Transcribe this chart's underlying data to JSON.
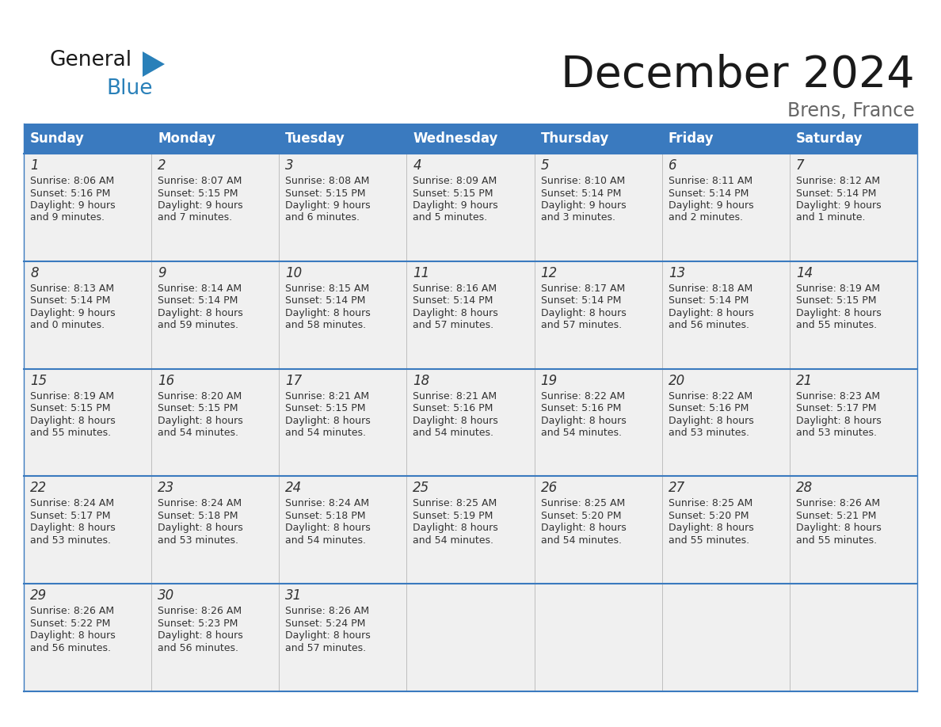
{
  "title": "December 2024",
  "subtitle": "Brens, France",
  "header_color": "#3a7abf",
  "header_text_color": "#ffffff",
  "cell_bg_color": "#f0f0f0",
  "divider_color": "#3a7abf",
  "text_color": "#333333",
  "subtitle_color": "#666666",
  "day_names": [
    "Sunday",
    "Monday",
    "Tuesday",
    "Wednesday",
    "Thursday",
    "Friday",
    "Saturday"
  ],
  "days": [
    {
      "day": 1,
      "col": 0,
      "row": 0,
      "sunrise": "8:06 AM",
      "sunset": "5:16 PM",
      "daylight_h": "9 hours",
      "daylight_m": "and 9 minutes."
    },
    {
      "day": 2,
      "col": 1,
      "row": 0,
      "sunrise": "8:07 AM",
      "sunset": "5:15 PM",
      "daylight_h": "9 hours",
      "daylight_m": "and 7 minutes."
    },
    {
      "day": 3,
      "col": 2,
      "row": 0,
      "sunrise": "8:08 AM",
      "sunset": "5:15 PM",
      "daylight_h": "9 hours",
      "daylight_m": "and 6 minutes."
    },
    {
      "day": 4,
      "col": 3,
      "row": 0,
      "sunrise": "8:09 AM",
      "sunset": "5:15 PM",
      "daylight_h": "9 hours",
      "daylight_m": "and 5 minutes."
    },
    {
      "day": 5,
      "col": 4,
      "row": 0,
      "sunrise": "8:10 AM",
      "sunset": "5:14 PM",
      "daylight_h": "9 hours",
      "daylight_m": "and 3 minutes."
    },
    {
      "day": 6,
      "col": 5,
      "row": 0,
      "sunrise": "8:11 AM",
      "sunset": "5:14 PM",
      "daylight_h": "9 hours",
      "daylight_m": "and 2 minutes."
    },
    {
      "day": 7,
      "col": 6,
      "row": 0,
      "sunrise": "8:12 AM",
      "sunset": "5:14 PM",
      "daylight_h": "9 hours",
      "daylight_m": "and 1 minute."
    },
    {
      "day": 8,
      "col": 0,
      "row": 1,
      "sunrise": "8:13 AM",
      "sunset": "5:14 PM",
      "daylight_h": "9 hours",
      "daylight_m": "and 0 minutes."
    },
    {
      "day": 9,
      "col": 1,
      "row": 1,
      "sunrise": "8:14 AM",
      "sunset": "5:14 PM",
      "daylight_h": "8 hours",
      "daylight_m": "and 59 minutes."
    },
    {
      "day": 10,
      "col": 2,
      "row": 1,
      "sunrise": "8:15 AM",
      "sunset": "5:14 PM",
      "daylight_h": "8 hours",
      "daylight_m": "and 58 minutes."
    },
    {
      "day": 11,
      "col": 3,
      "row": 1,
      "sunrise": "8:16 AM",
      "sunset": "5:14 PM",
      "daylight_h": "8 hours",
      "daylight_m": "and 57 minutes."
    },
    {
      "day": 12,
      "col": 4,
      "row": 1,
      "sunrise": "8:17 AM",
      "sunset": "5:14 PM",
      "daylight_h": "8 hours",
      "daylight_m": "and 57 minutes."
    },
    {
      "day": 13,
      "col": 5,
      "row": 1,
      "sunrise": "8:18 AM",
      "sunset": "5:14 PM",
      "daylight_h": "8 hours",
      "daylight_m": "and 56 minutes."
    },
    {
      "day": 14,
      "col": 6,
      "row": 1,
      "sunrise": "8:19 AM",
      "sunset": "5:15 PM",
      "daylight_h": "8 hours",
      "daylight_m": "and 55 minutes."
    },
    {
      "day": 15,
      "col": 0,
      "row": 2,
      "sunrise": "8:19 AM",
      "sunset": "5:15 PM",
      "daylight_h": "8 hours",
      "daylight_m": "and 55 minutes."
    },
    {
      "day": 16,
      "col": 1,
      "row": 2,
      "sunrise": "8:20 AM",
      "sunset": "5:15 PM",
      "daylight_h": "8 hours",
      "daylight_m": "and 54 minutes."
    },
    {
      "day": 17,
      "col": 2,
      "row": 2,
      "sunrise": "8:21 AM",
      "sunset": "5:15 PM",
      "daylight_h": "8 hours",
      "daylight_m": "and 54 minutes."
    },
    {
      "day": 18,
      "col": 3,
      "row": 2,
      "sunrise": "8:21 AM",
      "sunset": "5:16 PM",
      "daylight_h": "8 hours",
      "daylight_m": "and 54 minutes."
    },
    {
      "day": 19,
      "col": 4,
      "row": 2,
      "sunrise": "8:22 AM",
      "sunset": "5:16 PM",
      "daylight_h": "8 hours",
      "daylight_m": "and 54 minutes."
    },
    {
      "day": 20,
      "col": 5,
      "row": 2,
      "sunrise": "8:22 AM",
      "sunset": "5:16 PM",
      "daylight_h": "8 hours",
      "daylight_m": "and 53 minutes."
    },
    {
      "day": 21,
      "col": 6,
      "row": 2,
      "sunrise": "8:23 AM",
      "sunset": "5:17 PM",
      "daylight_h": "8 hours",
      "daylight_m": "and 53 minutes."
    },
    {
      "day": 22,
      "col": 0,
      "row": 3,
      "sunrise": "8:24 AM",
      "sunset": "5:17 PM",
      "daylight_h": "8 hours",
      "daylight_m": "and 53 minutes."
    },
    {
      "day": 23,
      "col": 1,
      "row": 3,
      "sunrise": "8:24 AM",
      "sunset": "5:18 PM",
      "daylight_h": "8 hours",
      "daylight_m": "and 53 minutes."
    },
    {
      "day": 24,
      "col": 2,
      "row": 3,
      "sunrise": "8:24 AM",
      "sunset": "5:18 PM",
      "daylight_h": "8 hours",
      "daylight_m": "and 54 minutes."
    },
    {
      "day": 25,
      "col": 3,
      "row": 3,
      "sunrise": "8:25 AM",
      "sunset": "5:19 PM",
      "daylight_h": "8 hours",
      "daylight_m": "and 54 minutes."
    },
    {
      "day": 26,
      "col": 4,
      "row": 3,
      "sunrise": "8:25 AM",
      "sunset": "5:20 PM",
      "daylight_h": "8 hours",
      "daylight_m": "and 54 minutes."
    },
    {
      "day": 27,
      "col": 5,
      "row": 3,
      "sunrise": "8:25 AM",
      "sunset": "5:20 PM",
      "daylight_h": "8 hours",
      "daylight_m": "and 55 minutes."
    },
    {
      "day": 28,
      "col": 6,
      "row": 3,
      "sunrise": "8:26 AM",
      "sunset": "5:21 PM",
      "daylight_h": "8 hours",
      "daylight_m": "and 55 minutes."
    },
    {
      "day": 29,
      "col": 0,
      "row": 4,
      "sunrise": "8:26 AM",
      "sunset": "5:22 PM",
      "daylight_h": "8 hours",
      "daylight_m": "and 56 minutes."
    },
    {
      "day": 30,
      "col": 1,
      "row": 4,
      "sunrise": "8:26 AM",
      "sunset": "5:23 PM",
      "daylight_h": "8 hours",
      "daylight_m": "and 56 minutes."
    },
    {
      "day": 31,
      "col": 2,
      "row": 4,
      "sunrise": "8:26 AM",
      "sunset": "5:24 PM",
      "daylight_h": "8 hours",
      "daylight_m": "and 57 minutes."
    }
  ],
  "num_rows": 5,
  "title_fontsize": 40,
  "subtitle_fontsize": 17,
  "header_fontsize": 12,
  "day_num_fontsize": 12,
  "cell_text_fontsize": 9
}
